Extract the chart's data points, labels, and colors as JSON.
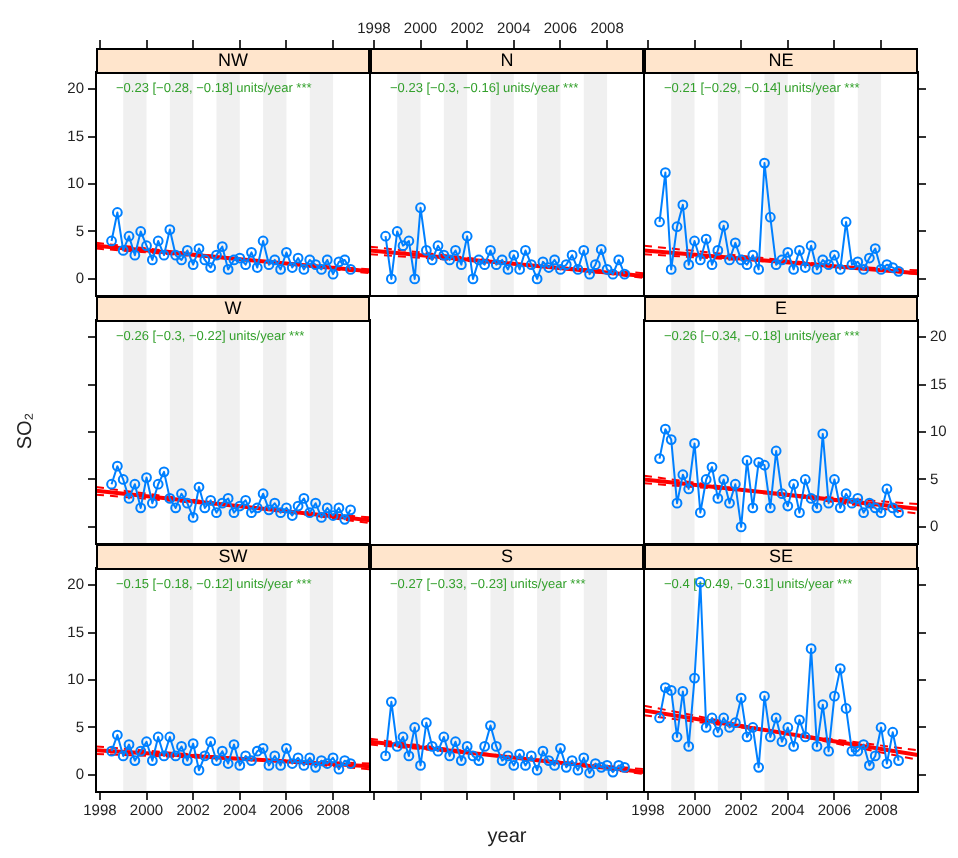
{
  "chart_data": [
    {
      "type": "line",
      "title": "NW",
      "tick_labels": "y",
      "legend": false,
      "xlim": [
        "1997-11",
        "2009-08"
      ],
      "xticks": [
        "1998",
        "2000",
        "2002",
        "2004",
        "2006",
        "2008"
      ],
      "ylim": [
        -1.8,
        21.8
      ],
      "yticks": [
        0,
        5,
        10,
        15,
        20
      ],
      "annotations": [
        "−0.23 [−0.28, −0.18] units/year ***"
      ],
      "bands": [
        {
          "axis": "x",
          "from": "1999",
          "to": "2000",
          "color": "#f0f0f0"
        },
        {
          "axis": "x",
          "from": "2001",
          "to": "2002",
          "color": "#f0f0f0"
        },
        {
          "axis": "x",
          "from": "2003",
          "to": "2004",
          "color": "#f0f0f0"
        },
        {
          "axis": "x",
          "from": "2005",
          "to": "2006",
          "color": "#f0f0f0"
        },
        {
          "axis": "x",
          "from": "2007",
          "to": "2008",
          "color": "#f0f0f0"
        }
      ],
      "x": [
        "1998-07",
        "1998-10",
        "1999-01",
        "1999-04",
        "1999-07",
        "1999-10",
        "2000-01",
        "2000-04",
        "2000-07",
        "2000-10",
        "2001-01",
        "2001-04",
        "2001-07",
        "2001-10",
        "2002-01",
        "2002-04",
        "2002-07",
        "2002-10",
        "2003-01",
        "2003-04",
        "2003-07",
        "2003-10",
        "2004-01",
        "2004-04",
        "2004-07",
        "2004-10",
        "2005-01",
        "2005-04",
        "2005-07",
        "2005-10",
        "2006-01",
        "2006-04",
        "2006-07",
        "2006-10",
        "2007-01",
        "2007-04",
        "2007-07",
        "2007-10",
        "2008-01",
        "2008-04",
        "2008-07",
        "2008-10"
      ],
      "series": [
        {
          "color": "#0080ff",
          "marker": "circle",
          "values": [
            4.0,
            7.0,
            3.0,
            4.5,
            2.5,
            5.0,
            3.5,
            2.0,
            4.0,
            2.5,
            5.2,
            2.5,
            2.0,
            3.0,
            1.5,
            3.2,
            2.0,
            1.2,
            2.5,
            3.4,
            1.0,
            2.0,
            2.2,
            1.5,
            2.8,
            1.2,
            4.0,
            1.5,
            2.0,
            1.0,
            2.8,
            1.2,
            2.2,
            1.0,
            2.0,
            1.5,
            1.0,
            2.0,
            0.5,
            1.8,
            2.0,
            1.0
          ]
        },
        {
          "color": "#ff0000",
          "marker": "none",
          "x": [
            "1997-11",
            "2009-08"
          ],
          "values": [
            3.5,
            0.8
          ]
        },
        {
          "color": "#ff0000",
          "marker": "none",
          "line_style": "dashed",
          "x": [
            "1997-11",
            "2009-08"
          ],
          "values": [
            3.8,
            0.6
          ]
        },
        {
          "color": "#ff0000",
          "marker": "none",
          "line_style": "dashed",
          "x": [
            "1997-11",
            "2009-08"
          ],
          "values": [
            3.2,
            1.0
          ]
        }
      ]
    },
    {
      "type": "line",
      "title": "N",
      "tick_labels": "x",
      "legend": false,
      "xlim": [
        "1997-11",
        "2009-08"
      ],
      "xticks": [
        "1998",
        "2000",
        "2002",
        "2004",
        "2006",
        "2008"
      ],
      "ylim": [
        -1.8,
        21.8
      ],
      "annotations": [
        "−0.23 [−0.3, −0.16] units/year ***"
      ],
      "bands": [
        {
          "axis": "x",
          "from": "1999",
          "to": "2000",
          "color": "#f0f0f0"
        },
        {
          "axis": "x",
          "from": "2001",
          "to": "2002",
          "color": "#f0f0f0"
        },
        {
          "axis": "x",
          "from": "2003",
          "to": "2004",
          "color": "#f0f0f0"
        },
        {
          "axis": "x",
          "from": "2005",
          "to": "2006",
          "color": "#f0f0f0"
        },
        {
          "axis": "x",
          "from": "2007",
          "to": "2008",
          "color": "#f0f0f0"
        }
      ],
      "x": [
        "1998-07",
        "1998-10",
        "1999-01",
        "1999-04",
        "1999-07",
        "1999-10",
        "2000-01",
        "2000-04",
        "2000-07",
        "2000-10",
        "2001-01",
        "2001-04",
        "2001-07",
        "2001-10",
        "2002-01",
        "2002-04",
        "2002-07",
        "2002-10",
        "2003-01",
        "2003-04",
        "2003-07",
        "2003-10",
        "2004-01",
        "2004-04",
        "2004-07",
        "2004-10",
        "2005-01",
        "2005-04",
        "2005-07",
        "2005-10",
        "2006-01",
        "2006-04",
        "2006-07",
        "2006-10",
        "2007-01",
        "2007-04",
        "2007-07",
        "2007-10",
        "2008-01",
        "2008-04",
        "2008-07",
        "2008-10"
      ],
      "series": [
        {
          "color": "#0080ff",
          "marker": "circle",
          "values": [
            4.5,
            0.0,
            5.0,
            3.5,
            4.0,
            0.0,
            7.5,
            3.0,
            2.0,
            3.5,
            2.5,
            2.0,
            3.0,
            1.5,
            4.5,
            0.0,
            2.0,
            1.5,
            3.0,
            1.5,
            2.0,
            1.0,
            2.5,
            1.0,
            3.0,
            1.5,
            0.0,
            1.8,
            1.2,
            2.0,
            1.0,
            1.5,
            2.5,
            1.0,
            3.0,
            0.5,
            1.5,
            3.1,
            1.0,
            0.5,
            2.0,
            0.5
          ]
        },
        {
          "color": "#ff0000",
          "marker": "none",
          "x": [
            "1997-11",
            "2009-08"
          ],
          "values": [
            3.0,
            0.3
          ]
        },
        {
          "color": "#ff0000",
          "marker": "none",
          "line_style": "dashed",
          "x": [
            "1997-11",
            "2009-08"
          ],
          "values": [
            3.4,
            0.1
          ]
        },
        {
          "color": "#ff0000",
          "marker": "none",
          "line_style": "dashed",
          "x": [
            "1997-11",
            "2009-08"
          ],
          "values": [
            2.6,
            0.6
          ]
        }
      ]
    },
    {
      "type": "line",
      "title": "NE",
      "tick_labels": false,
      "legend": false,
      "xlim": [
        "1997-11",
        "2009-08"
      ],
      "xticks": [
        "1998",
        "2000",
        "2002",
        "2004",
        "2006",
        "2008"
      ],
      "ylim": [
        -1.8,
        21.8
      ],
      "yticks": [
        0,
        5,
        10,
        15,
        20
      ],
      "annotations": [
        "−0.21 [−0.29, −0.14] units/year ***"
      ],
      "bands": [
        {
          "axis": "x",
          "from": "1999",
          "to": "2000",
          "color": "#f0f0f0"
        },
        {
          "axis": "x",
          "from": "2001",
          "to": "2002",
          "color": "#f0f0f0"
        },
        {
          "axis": "x",
          "from": "2003",
          "to": "2004",
          "color": "#f0f0f0"
        },
        {
          "axis": "x",
          "from": "2005",
          "to": "2006",
          "color": "#f0f0f0"
        },
        {
          "axis": "x",
          "from": "2007",
          "to": "2008",
          "color": "#f0f0f0"
        }
      ],
      "x": [
        "1998-07",
        "1998-10",
        "1999-01",
        "1999-04",
        "1999-07",
        "1999-10",
        "2000-01",
        "2000-04",
        "2000-07",
        "2000-10",
        "2001-01",
        "2001-04",
        "2001-07",
        "2001-10",
        "2002-01",
        "2002-04",
        "2002-07",
        "2002-10",
        "2003-01",
        "2003-04",
        "2003-07",
        "2003-10",
        "2004-01",
        "2004-04",
        "2004-07",
        "2004-10",
        "2005-01",
        "2005-04",
        "2005-07",
        "2005-10",
        "2006-01",
        "2006-04",
        "2006-07",
        "2006-10",
        "2007-01",
        "2007-04",
        "2007-07",
        "2007-10",
        "2008-01",
        "2008-04",
        "2008-07",
        "2008-10"
      ],
      "series": [
        {
          "color": "#0080ff",
          "marker": "circle",
          "values": [
            6.0,
            11.2,
            1.0,
            5.5,
            7.8,
            1.5,
            4.0,
            2.0,
            4.2,
            1.5,
            3.0,
            5.6,
            2.0,
            3.8,
            2.0,
            1.5,
            2.5,
            1.0,
            12.2,
            6.5,
            1.5,
            2.0,
            2.8,
            1.0,
            3.0,
            1.2,
            3.5,
            1.0,
            2.0,
            1.5,
            2.5,
            1.0,
            6.0,
            1.5,
            1.8,
            1.0,
            2.2,
            3.2,
            1.0,
            1.5,
            1.2,
            0.8
          ]
        },
        {
          "color": "#ff0000",
          "marker": "none",
          "x": [
            "1997-11",
            "2009-08"
          ],
          "values": [
            3.0,
            0.6
          ]
        },
        {
          "color": "#ff0000",
          "marker": "none",
          "line_style": "dashed",
          "x": [
            "1997-11",
            "2009-08"
          ],
          "values": [
            3.5,
            0.5
          ]
        },
        {
          "color": "#ff0000",
          "marker": "none",
          "line_style": "dashed",
          "x": [
            "1997-11",
            "2009-08"
          ],
          "values": [
            2.6,
            0.9
          ]
        }
      ]
    },
    {
      "type": "line",
      "title": "W",
      "tick_labels": false,
      "legend": false,
      "ylabel": "SO₂",
      "xlim": [
        "1997-11",
        "2009-08"
      ],
      "ylim": [
        -1.8,
        21.8
      ],
      "yticks": [
        0,
        5,
        10,
        15,
        20
      ],
      "annotations": [
        "−0.26 [−0.3, −0.22] units/year ***"
      ],
      "bands": [
        {
          "axis": "x",
          "from": "1999",
          "to": "2000",
          "color": "#f0f0f0"
        },
        {
          "axis": "x",
          "from": "2001",
          "to": "2002",
          "color": "#f0f0f0"
        },
        {
          "axis": "x",
          "from": "2003",
          "to": "2004",
          "color": "#f0f0f0"
        },
        {
          "axis": "x",
          "from": "2005",
          "to": "2006",
          "color": "#f0f0f0"
        },
        {
          "axis": "x",
          "from": "2007",
          "to": "2008",
          "color": "#f0f0f0"
        }
      ],
      "x": [
        "1998-07",
        "1998-10",
        "1999-01",
        "1999-04",
        "1999-07",
        "1999-10",
        "2000-01",
        "2000-04",
        "2000-07",
        "2000-10",
        "2001-01",
        "2001-04",
        "2001-07",
        "2001-10",
        "2002-01",
        "2002-04",
        "2002-07",
        "2002-10",
        "2003-01",
        "2003-04",
        "2003-07",
        "2003-10",
        "2004-01",
        "2004-04",
        "2004-07",
        "2004-10",
        "2005-01",
        "2005-04",
        "2005-07",
        "2005-10",
        "2006-01",
        "2006-04",
        "2006-07",
        "2006-10",
        "2007-01",
        "2007-04",
        "2007-07",
        "2007-10",
        "2008-01",
        "2008-04",
        "2008-07",
        "2008-10"
      ],
      "series": [
        {
          "color": "#0080ff",
          "marker": "circle",
          "values": [
            4.5,
            6.4,
            5.0,
            3.0,
            4.5,
            2.0,
            5.2,
            2.5,
            4.5,
            5.8,
            3.0,
            2.0,
            3.5,
            2.5,
            1.0,
            4.2,
            2.0,
            2.8,
            1.5,
            2.5,
            3.0,
            1.5,
            2.2,
            2.8,
            1.5,
            2.0,
            3.5,
            1.8,
            2.5,
            1.5,
            2.0,
            1.2,
            2.2,
            3.0,
            1.5,
            2.5,
            1.0,
            2.0,
            1.2,
            2.0,
            0.8,
            1.8
          ]
        },
        {
          "color": "#ff0000",
          "marker": "none",
          "x": [
            "1997-11",
            "2009-08"
          ],
          "values": [
            3.8,
            0.7
          ]
        },
        {
          "color": "#ff0000",
          "marker": "none",
          "line_style": "dashed",
          "x": [
            "1997-11",
            "2009-08"
          ],
          "values": [
            4.2,
            0.4
          ]
        },
        {
          "color": "#ff0000",
          "marker": "none",
          "line_style": "dashed",
          "x": [
            "1997-11",
            "2009-08"
          ],
          "values": [
            3.4,
            1.0
          ]
        }
      ]
    },
    {
      "type": "line",
      "title": "E",
      "tick_labels": "y",
      "legend": false,
      "xlim": [
        "1997-11",
        "2009-08"
      ],
      "ylim": [
        -1.8,
        21.8
      ],
      "yticks": [
        0,
        5,
        10,
        15,
        20
      ],
      "annotations": [
        "−0.26 [−0.34, −0.18] units/year ***"
      ],
      "bands": [
        {
          "axis": "x",
          "from": "1999",
          "to": "2000",
          "color": "#f0f0f0"
        },
        {
          "axis": "x",
          "from": "2001",
          "to": "2002",
          "color": "#f0f0f0"
        },
        {
          "axis": "x",
          "from": "2003",
          "to": "2004",
          "color": "#f0f0f0"
        },
        {
          "axis": "x",
          "from": "2005",
          "to": "2006",
          "color": "#f0f0f0"
        },
        {
          "axis": "x",
          "from": "2007",
          "to": "2008",
          "color": "#f0f0f0"
        }
      ],
      "x": [
        "1998-07",
        "1998-10",
        "1999-01",
        "1999-04",
        "1999-07",
        "1999-10",
        "2000-01",
        "2000-04",
        "2000-07",
        "2000-10",
        "2001-01",
        "2001-04",
        "2001-07",
        "2001-10",
        "2002-01",
        "2002-04",
        "2002-07",
        "2002-10",
        "2003-01",
        "2003-04",
        "2003-07",
        "2003-10",
        "2004-01",
        "2004-04",
        "2004-07",
        "2004-10",
        "2005-01",
        "2005-04",
        "2005-07",
        "2005-10",
        "2006-01",
        "2006-04",
        "2006-07",
        "2006-10",
        "2007-01",
        "2007-04",
        "2007-07",
        "2007-10",
        "2008-01",
        "2008-04",
        "2008-07",
        "2008-10"
      ],
      "series": [
        {
          "color": "#0080ff",
          "marker": "circle",
          "values": [
            7.2,
            10.3,
            9.2,
            2.5,
            5.5,
            4.0,
            8.8,
            1.5,
            5.0,
            6.3,
            3.0,
            5.0,
            2.5,
            4.5,
            0.0,
            7.0,
            2.0,
            6.8,
            6.5,
            2.0,
            8.0,
            3.5,
            2.2,
            4.5,
            1.5,
            5.0,
            3.0,
            2.0,
            9.8,
            2.5,
            5.0,
            2.0,
            3.5,
            2.5,
            3.0,
            1.5,
            2.5,
            2.0,
            1.5,
            4.0,
            2.0,
            1.5
          ]
        },
        {
          "color": "#ff0000",
          "marker": "none",
          "x": [
            "1997-11",
            "2009-08"
          ],
          "values": [
            5.0,
            1.9
          ]
        },
        {
          "color": "#ff0000",
          "marker": "none",
          "line_style": "dashed",
          "x": [
            "1997-11",
            "2009-08"
          ],
          "values": [
            5.4,
            1.4
          ]
        },
        {
          "color": "#ff0000",
          "marker": "none",
          "line_style": "dashed",
          "x": [
            "1997-11",
            "2009-08"
          ],
          "values": [
            4.6,
            2.4
          ]
        }
      ]
    },
    {
      "type": "line",
      "title": "SW",
      "legend": false,
      "xlim": [
        "1997-11",
        "2009-08"
      ],
      "xticks": [
        "1998",
        "2000",
        "2002",
        "2004",
        "2006",
        "2008"
      ],
      "ylim": [
        -1.8,
        21.8
      ],
      "yticks": [
        0,
        5,
        10,
        15,
        20
      ],
      "annotations": [
        "−0.15 [−0.18, −0.12] units/year ***"
      ],
      "bands": [
        {
          "axis": "x",
          "from": "1999",
          "to": "2000",
          "color": "#f0f0f0"
        },
        {
          "axis": "x",
          "from": "2001",
          "to": "2002",
          "color": "#f0f0f0"
        },
        {
          "axis": "x",
          "from": "2003",
          "to": "2004",
          "color": "#f0f0f0"
        },
        {
          "axis": "x",
          "from": "2005",
          "to": "2006",
          "color": "#f0f0f0"
        },
        {
          "axis": "x",
          "from": "2007",
          "to": "2008",
          "color": "#f0f0f0"
        }
      ],
      "x": [
        "1998-07",
        "1998-10",
        "1999-01",
        "1999-04",
        "1999-07",
        "1999-10",
        "2000-01",
        "2000-04",
        "2000-07",
        "2000-10",
        "2001-01",
        "2001-04",
        "2001-07",
        "2001-10",
        "2002-01",
        "2002-04",
        "2002-07",
        "2002-10",
        "2003-01",
        "2003-04",
        "2003-07",
        "2003-10",
        "2004-01",
        "2004-04",
        "2004-07",
        "2004-10",
        "2005-01",
        "2005-04",
        "2005-07",
        "2005-10",
        "2006-01",
        "2006-04",
        "2006-07",
        "2006-10",
        "2007-01",
        "2007-04",
        "2007-07",
        "2007-10",
        "2008-01",
        "2008-04",
        "2008-07",
        "2008-10"
      ],
      "series": [
        {
          "color": "#0080ff",
          "marker": "circle",
          "values": [
            2.5,
            4.2,
            2.0,
            3.2,
            1.5,
            2.5,
            3.5,
            1.5,
            4.0,
            2.0,
            4.0,
            2.0,
            3.0,
            1.5,
            3.3,
            0.5,
            2.0,
            3.5,
            1.5,
            2.5,
            1.2,
            3.2,
            1.0,
            2.0,
            1.5,
            2.5,
            2.8,
            1.0,
            2.0,
            1.0,
            2.8,
            1.2,
            1.8,
            1.0,
            1.8,
            0.8,
            1.5,
            1.2,
            1.8,
            0.6,
            1.5,
            1.2
          ]
        },
        {
          "color": "#ff0000",
          "marker": "none",
          "x": [
            "1997-11",
            "2009-08"
          ],
          "values": [
            2.6,
            0.9
          ]
        },
        {
          "color": "#ff0000",
          "marker": "none",
          "line_style": "dashed",
          "x": [
            "1997-11",
            "2009-08"
          ],
          "values": [
            3.0,
            0.6
          ]
        },
        {
          "color": "#ff0000",
          "marker": "none",
          "line_style": "dashed",
          "x": [
            "1997-11",
            "2009-08"
          ],
          "values": [
            2.2,
            1.2
          ]
        }
      ]
    },
    {
      "type": "line",
      "title": "S",
      "tick_labels": false,
      "legend": false,
      "xlabel": "year",
      "xlim": [
        "1997-11",
        "2009-08"
      ],
      "xticks": [
        "1998",
        "2000",
        "2002",
        "2004",
        "2006",
        "2008"
      ],
      "ylim": [
        -1.8,
        21.8
      ],
      "annotations": [
        "−0.27 [−0.33, −0.23] units/year ***"
      ],
      "bands": [
        {
          "axis": "x",
          "from": "1999",
          "to": "2000",
          "color": "#f0f0f0"
        },
        {
          "axis": "x",
          "from": "2001",
          "to": "2002",
          "color": "#f0f0f0"
        },
        {
          "axis": "x",
          "from": "2003",
          "to": "2004",
          "color": "#f0f0f0"
        },
        {
          "axis": "x",
          "from": "2005",
          "to": "2006",
          "color": "#f0f0f0"
        },
        {
          "axis": "x",
          "from": "2007",
          "to": "2008",
          "color": "#f0f0f0"
        }
      ],
      "x": [
        "1998-07",
        "1998-10",
        "1999-01",
        "1999-04",
        "1999-07",
        "1999-10",
        "2000-01",
        "2000-04",
        "2000-07",
        "2000-10",
        "2001-01",
        "2001-04",
        "2001-07",
        "2001-10",
        "2002-01",
        "2002-04",
        "2002-07",
        "2002-10",
        "2003-01",
        "2003-04",
        "2003-07",
        "2003-10",
        "2004-01",
        "2004-04",
        "2004-07",
        "2004-10",
        "2005-01",
        "2005-04",
        "2005-07",
        "2005-10",
        "2006-01",
        "2006-04",
        "2006-07",
        "2006-10",
        "2007-01",
        "2007-04",
        "2007-07",
        "2007-10",
        "2008-01",
        "2008-04",
        "2008-07",
        "2008-10"
      ],
      "series": [
        {
          "color": "#0080ff",
          "marker": "circle",
          "values": [
            2.0,
            7.7,
            3.0,
            4.0,
            2.0,
            5.0,
            1.0,
            5.5,
            3.0,
            2.5,
            4.0,
            2.0,
            3.5,
            1.5,
            3.0,
            2.0,
            1.5,
            3.0,
            5.2,
            3.0,
            1.5,
            2.0,
            1.0,
            2.2,
            1.0,
            2.0,
            0.5,
            2.5,
            1.5,
            1.0,
            2.8,
            0.8,
            1.5,
            0.5,
            1.8,
            0.2,
            1.2,
            0.8,
            1.0,
            0.3,
            1.0,
            0.8
          ]
        },
        {
          "color": "#ff0000",
          "marker": "none",
          "x": [
            "1997-11",
            "2009-08"
          ],
          "values": [
            3.5,
            0.3
          ]
        },
        {
          "color": "#ff0000",
          "marker": "none",
          "line_style": "dashed",
          "x": [
            "1997-11",
            "2009-08"
          ],
          "values": [
            3.8,
            0.1
          ]
        },
        {
          "color": "#ff0000",
          "marker": "none",
          "line_style": "dashed",
          "x": [
            "1997-11",
            "2009-08"
          ],
          "values": [
            3.2,
            0.6
          ]
        }
      ]
    },
    {
      "type": "line",
      "title": "SE",
      "tick_labels": "x",
      "legend": false,
      "xlim": [
        "1997-11",
        "2009-08"
      ],
      "xticks": [
        "1998",
        "2000",
        "2002",
        "2004",
        "2006",
        "2008"
      ],
      "ylim": [
        -1.8,
        21.8
      ],
      "yticks": [
        0,
        5,
        10,
        15,
        20
      ],
      "annotations": [
        "−0.4 [−0.49, −0.31] units/year ***"
      ],
      "bands": [
        {
          "axis": "x",
          "from": "1999",
          "to": "2000",
          "color": "#f0f0f0"
        },
        {
          "axis": "x",
          "from": "2001",
          "to": "2002",
          "color": "#f0f0f0"
        },
        {
          "axis": "x",
          "from": "2003",
          "to": "2004",
          "color": "#f0f0f0"
        },
        {
          "axis": "x",
          "from": "2005",
          "to": "2006",
          "color": "#f0f0f0"
        },
        {
          "axis": "x",
          "from": "2007",
          "to": "2008",
          "color": "#f0f0f0"
        }
      ],
      "x": [
        "1998-07",
        "1998-10",
        "1999-01",
        "1999-04",
        "1999-07",
        "1999-10",
        "2000-01",
        "2000-04",
        "2000-07",
        "2000-10",
        "2001-01",
        "2001-04",
        "2001-07",
        "2001-10",
        "2002-01",
        "2002-04",
        "2002-07",
        "2002-10",
        "2003-01",
        "2003-04",
        "2003-07",
        "2003-10",
        "2004-01",
        "2004-04",
        "2004-07",
        "2004-10",
        "2005-01",
        "2005-04",
        "2005-07",
        "2005-10",
        "2006-01",
        "2006-04",
        "2006-07",
        "2006-10",
        "2007-01",
        "2007-04",
        "2007-07",
        "2007-10",
        "2008-01",
        "2008-04",
        "2008-07",
        "2008-10"
      ],
      "series": [
        {
          "color": "#0080ff",
          "marker": "circle",
          "values": [
            6.0,
            9.2,
            8.9,
            4.0,
            8.8,
            3.0,
            10.2,
            20.3,
            5.0,
            6.0,
            4.5,
            6.0,
            5.0,
            5.5,
            8.1,
            4.0,
            5.0,
            0.8,
            8.3,
            4.0,
            6.0,
            3.5,
            5.0,
            3.0,
            5.8,
            4.0,
            13.3,
            3.0,
            7.4,
            2.5,
            8.3,
            11.2,
            7.0,
            2.5,
            2.5,
            3.2,
            1.0,
            2.0,
            5.0,
            1.2,
            4.5,
            1.5
          ]
        },
        {
          "color": "#ff0000",
          "marker": "none",
          "x": [
            "1997-11",
            "2009-08"
          ],
          "values": [
            6.8,
            2.1
          ]
        },
        {
          "color": "#ff0000",
          "marker": "none",
          "line_style": "dashed",
          "x": [
            "1997-11",
            "2009-08"
          ],
          "values": [
            7.3,
            1.6
          ]
        },
        {
          "color": "#ff0000",
          "marker": "none",
          "line_style": "dashed",
          "x": [
            "1997-11",
            "2009-08"
          ],
          "values": [
            6.3,
            2.6
          ]
        }
      ]
    }
  ]
}
